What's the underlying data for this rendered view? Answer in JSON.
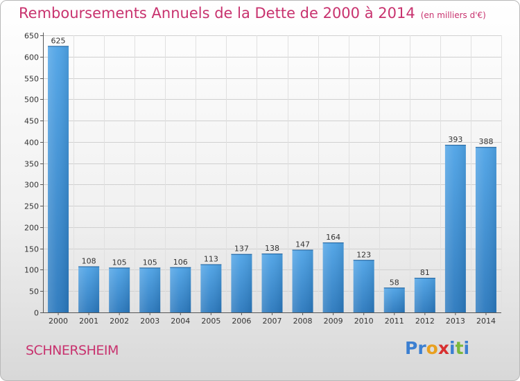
{
  "chart_data": {
    "type": "bar",
    "title": "Remboursements Annuels de la Dette de 2000 à 2014",
    "unit_note": "(en milliers d'€)",
    "categories": [
      "2000",
      "2001",
      "2002",
      "2003",
      "2004",
      "2005",
      "2006",
      "2007",
      "2008",
      "2009",
      "2010",
      "2011",
      "2012",
      "2013",
      "2014"
    ],
    "values": [
      625,
      108,
      105,
      105,
      106,
      113,
      137,
      138,
      147,
      164,
      123,
      58,
      81,
      393,
      388
    ],
    "ylim": [
      0,
      650
    ],
    "yticks": [
      0,
      50,
      100,
      150,
      200,
      250,
      300,
      350,
      400,
      450,
      500,
      550,
      600,
      650
    ],
    "grid": true,
    "bar_color": "#3d8fd6"
  },
  "footer": {
    "city": "SCHNERSHEIM",
    "logo_letters": [
      "P",
      "r",
      "o",
      "x",
      "i",
      "t",
      "i"
    ],
    "logo_colors": [
      "#3b7fd1",
      "#3b7fd1",
      "#e8a020",
      "#d83030",
      "#3b7fd1",
      "#7ab83a",
      "#3b7fd1"
    ]
  }
}
